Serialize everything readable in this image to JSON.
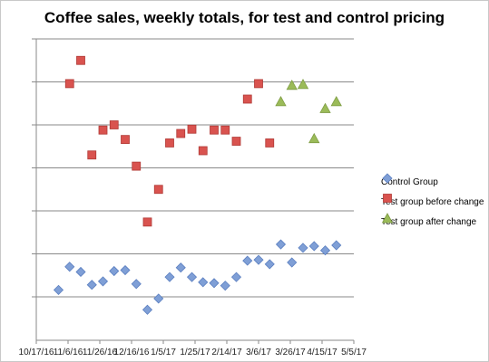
{
  "chart_data": {
    "type": "scatter",
    "title": "Coffee sales, weekly totals, for test and control pricing",
    "xlabel": "",
    "ylabel": "",
    "x_tick_labels": [
      "10/17/16",
      "11/6/16",
      "11/26/16",
      "12/16/16",
      "1/5/17",
      "1/25/17",
      "2/14/17",
      "3/6/17",
      "3/26/17",
      "4/15/17",
      "5/5/17"
    ],
    "y_tick_labels_shown": false,
    "ylim": [
      0,
      3000
    ],
    "y_gridlines": [
      0,
      500,
      1000,
      1500,
      2000,
      2500,
      3000
    ],
    "grid": true,
    "legend_position": "right",
    "series": [
      {
        "name": "Control Group",
        "marker": "diamond",
        "color": "#7f9fd6",
        "x": [
          "10/31/16",
          "11/7/16",
          "11/14/16",
          "11/21/16",
          "11/28/16",
          "12/5/16",
          "12/12/16",
          "12/19/16",
          "12/26/16",
          "1/2/17",
          "1/9/17",
          "1/16/17",
          "1/23/17",
          "1/30/17",
          "2/6/17",
          "2/13/17",
          "2/20/17",
          "2/27/17",
          "3/6/17",
          "3/13/17",
          "3/20/17",
          "3/27/17",
          "4/3/17",
          "4/10/17",
          "4/17/17",
          "4/24/17"
        ],
        "y": [
          80,
          350,
          290,
          140,
          180,
          300,
          310,
          150,
          -150,
          -20,
          230,
          340,
          230,
          170,
          160,
          130,
          230,
          420,
          430,
          380,
          610,
          400,
          570,
          590,
          540,
          600
        ]
      },
      {
        "name": "Test group before change",
        "marker": "square",
        "color": "#d9534f",
        "x": [
          "11/7/16",
          "11/14/16",
          "11/21/16",
          "11/28/16",
          "12/5/16",
          "12/12/16",
          "12/19/16",
          "12/26/16",
          "1/2/17",
          "1/9/17",
          "1/16/17",
          "1/23/17",
          "1/30/17",
          "2/6/17",
          "2/13/17",
          "2/20/17",
          "2/27/17",
          "3/6/17",
          "3/13/17"
        ],
        "y": [
          2480,
          2750,
          1650,
          1940,
          2000,
          1830,
          1520,
          870,
          1250,
          1790,
          1900,
          1950,
          1700,
          1940,
          1940,
          1810,
          2300,
          2480,
          1790
        ]
      },
      {
        "name": "Test group after change",
        "marker": "triangle",
        "color": "#9bbb59",
        "x": [
          "3/20/17",
          "3/27/17",
          "4/3/17",
          "4/10/17",
          "4/17/17",
          "4/24/17"
        ],
        "y": [
          2270,
          2460,
          2470,
          1840,
          2190,
          2270
        ]
      }
    ]
  }
}
